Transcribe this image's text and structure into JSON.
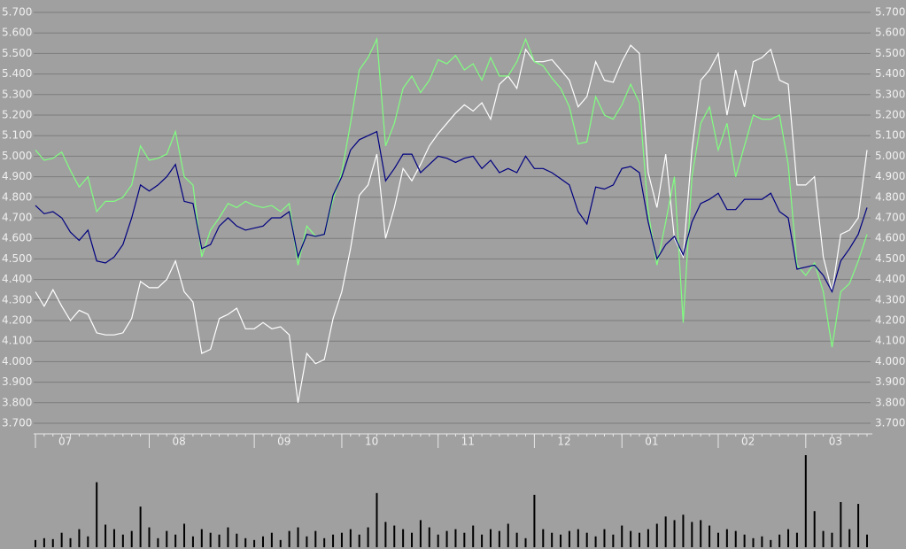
{
  "chart_data": {
    "type": "line",
    "categories": [
      "07",
      null,
      null,
      null,
      null,
      null,
      null,
      null,
      null,
      null,
      null,
      null,
      null,
      "08",
      null,
      null,
      null,
      null,
      null,
      null,
      null,
      null,
      null,
      null,
      null,
      "09",
      null,
      null,
      null,
      null,
      null,
      null,
      null,
      null,
      null,
      "10",
      null,
      null,
      null,
      null,
      null,
      null,
      null,
      null,
      null,
      null,
      "11",
      null,
      null,
      null,
      null,
      null,
      null,
      null,
      null,
      null,
      null,
      "12",
      null,
      null,
      null,
      null,
      null,
      null,
      null,
      null,
      null,
      "01",
      null,
      null,
      null,
      null,
      null,
      null,
      null,
      null,
      null,
      null,
      "02",
      null,
      null,
      null,
      null,
      null,
      null,
      null,
      null,
      null,
      "03",
      null,
      null,
      null,
      null,
      null,
      null,
      null
    ],
    "series": [
      {
        "color": "#ffffff",
        "values": [
          4.34,
          4.27,
          4.35,
          4.27,
          4.2,
          4.25,
          4.23,
          4.14,
          4.13,
          4.13,
          4.14,
          4.21,
          4.39,
          4.36,
          4.36,
          4.4,
          4.49,
          4.34,
          4.29,
          4.04,
          4.06,
          4.21,
          4.23,
          4.26,
          4.16,
          4.16,
          4.19,
          4.16,
          4.17,
          4.13,
          3.8,
          4.04,
          3.99,
          4.01,
          4.21,
          4.34,
          4.55,
          4.81,
          4.86,
          5.01,
          4.6,
          4.75,
          4.94,
          4.88,
          4.96,
          5.05,
          5.11,
          5.16,
          5.21,
          5.25,
          5.22,
          5.26,
          5.18,
          5.35,
          5.39,
          5.33,
          5.52,
          5.46,
          5.46,
          5.47,
          5.42,
          5.37,
          5.24,
          5.29,
          5.46,
          5.37,
          5.36,
          5.46,
          5.54,
          5.5,
          4.92,
          4.75,
          5.01,
          4.6,
          4.51,
          5.03,
          5.37,
          5.42,
          5.5,
          5.2,
          5.42,
          5.24,
          5.46,
          5.48,
          5.52,
          5.37,
          5.35,
          4.86,
          4.86,
          4.9,
          4.51,
          4.34,
          4.62,
          4.64,
          4.7,
          5.03
        ]
      },
      {
        "color": "#80ff80",
        "values": [
          5.03,
          4.98,
          4.99,
          5.02,
          4.93,
          4.85,
          4.9,
          4.73,
          4.78,
          4.78,
          4.8,
          4.86,
          5.05,
          4.98,
          4.99,
          5.01,
          5.12,
          4.9,
          4.86,
          4.51,
          4.64,
          4.7,
          4.77,
          4.75,
          4.78,
          4.76,
          4.75,
          4.76,
          4.73,
          4.77,
          4.47,
          4.66,
          4.61,
          4.62,
          4.79,
          4.92,
          5.16,
          5.42,
          5.48,
          5.57,
          5.05,
          5.16,
          5.33,
          5.39,
          5.31,
          5.37,
          5.47,
          5.45,
          5.49,
          5.42,
          5.45,
          5.37,
          5.48,
          5.39,
          5.39,
          5.46,
          5.57,
          5.46,
          5.44,
          5.38,
          5.33,
          5.24,
          5.06,
          5.07,
          5.29,
          5.2,
          5.18,
          5.25,
          5.35,
          5.26,
          4.73,
          4.47,
          4.68,
          4.9,
          4.19,
          4.9,
          5.16,
          5.24,
          5.03,
          5.16,
          4.9,
          5.05,
          5.2,
          5.18,
          5.18,
          5.2,
          4.96,
          4.47,
          4.42,
          4.48,
          4.34,
          4.07,
          4.34,
          4.38,
          4.49,
          4.62
        ]
      },
      {
        "color": "#000080",
        "values": [
          4.76,
          4.72,
          4.73,
          4.7,
          4.63,
          4.59,
          4.64,
          4.49,
          4.48,
          4.51,
          4.57,
          4.7,
          4.86,
          4.83,
          4.86,
          4.9,
          4.96,
          4.78,
          4.77,
          4.55,
          4.57,
          4.66,
          4.7,
          4.66,
          4.64,
          4.65,
          4.66,
          4.7,
          4.7,
          4.73,
          4.51,
          4.62,
          4.61,
          4.62,
          4.81,
          4.9,
          5.03,
          5.08,
          5.1,
          5.12,
          4.88,
          4.94,
          5.01,
          5.01,
          4.92,
          4.96,
          5.0,
          4.99,
          4.97,
          4.99,
          5.0,
          4.94,
          4.98,
          4.92,
          4.94,
          4.92,
          5.0,
          4.94,
          4.94,
          4.92,
          4.89,
          4.86,
          4.73,
          4.67,
          4.85,
          4.84,
          4.86,
          4.94,
          4.95,
          4.92,
          4.68,
          4.5,
          4.57,
          4.61,
          4.52,
          4.68,
          4.77,
          4.79,
          4.82,
          4.74,
          4.74,
          4.79,
          4.79,
          4.79,
          4.82,
          4.73,
          4.7,
          4.45,
          4.46,
          4.47,
          4.42,
          4.34,
          4.49,
          4.55,
          4.62,
          4.75
        ]
      }
    ],
    "volume": {
      "color": "#000000",
      "values": [
        8,
        10,
        9,
        16,
        10,
        20,
        12,
        72,
        25,
        20,
        14,
        18,
        45,
        22,
        10,
        18,
        14,
        26,
        12,
        20,
        16,
        14,
        22,
        15,
        10,
        8,
        12,
        16,
        8,
        18,
        22,
        12,
        18,
        10,
        14,
        16,
        20,
        14,
        22,
        60,
        28,
        24,
        20,
        16,
        30,
        22,
        14,
        18,
        20,
        16,
        24,
        14,
        20,
        18,
        26,
        16,
        10,
        58,
        20,
        16,
        14,
        18,
        20,
        16,
        12,
        20,
        14,
        24,
        18,
        16,
        20,
        26,
        34,
        30,
        36,
        28,
        30,
        24,
        16,
        20,
        18,
        14,
        10,
        12,
        8,
        14,
        20,
        16,
        102,
        40,
        18,
        16,
        50,
        20,
        48,
        14
      ]
    },
    "ylim": [
      3.7,
      5.7
    ],
    "yticks": [
      {
        "value": 3.7,
        "label": "3.700"
      },
      {
        "value": 3.8,
        "label": "3.800"
      },
      {
        "value": 3.9,
        "label": "3.900"
      },
      {
        "value": 4.0,
        "label": "4.000"
      },
      {
        "value": 4.1,
        "label": "4.100"
      },
      {
        "value": 4.2,
        "label": "4.200"
      },
      {
        "value": 4.3,
        "label": "4.300"
      },
      {
        "value": 4.4,
        "label": "4.400"
      },
      {
        "value": 4.5,
        "label": "4.500"
      },
      {
        "value": 4.6,
        "label": "4.600"
      },
      {
        "value": 4.7,
        "label": "4.700"
      },
      {
        "value": 4.8,
        "label": "4.800"
      },
      {
        "value": 4.9,
        "label": "4.900"
      },
      {
        "value": 5.0,
        "label": "5.000"
      },
      {
        "value": 5.1,
        "label": "5.100"
      },
      {
        "value": 5.2,
        "label": "5.200"
      },
      {
        "value": 5.3,
        "label": "5.300"
      },
      {
        "value": 5.4,
        "label": "5.400"
      },
      {
        "value": 5.5,
        "label": "5.500"
      },
      {
        "value": 5.6,
        "label": "5.600"
      },
      {
        "value": 5.7,
        "label": "5.700"
      }
    ],
    "grid": true
  }
}
